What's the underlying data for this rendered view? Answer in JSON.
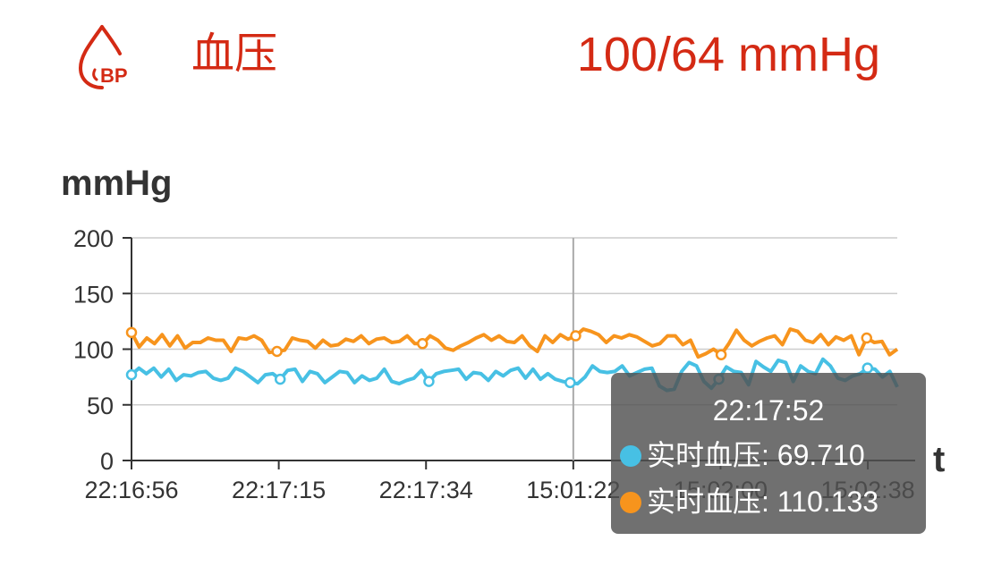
{
  "header": {
    "icon": "blood-drop-bp-icon",
    "icon_text": "BP",
    "title": "血压",
    "reading": "100/64 mmHg",
    "accent_color": "#d42a14"
  },
  "chart_data": {
    "type": "line",
    "ylabel": "mmHg",
    "xlabel": "t",
    "ylim": [
      0,
      200
    ],
    "yticks": [
      0,
      50,
      100,
      150,
      200
    ],
    "xtick_labels": [
      "22:16:56",
      "22:17:15",
      "22:17:34",
      "15:01:22",
      "15:02:00",
      "15:02:38"
    ],
    "grid": true,
    "series": [
      {
        "name": "实时血压",
        "color": "#47c0e4",
        "values": [
          77,
          83,
          78,
          83,
          75,
          82,
          72,
          77,
          76,
          79,
          80,
          74,
          72,
          74,
          83,
          80,
          75,
          70,
          77,
          78,
          73,
          81,
          82,
          71,
          80,
          78,
          70,
          75,
          80,
          79,
          70,
          76,
          72,
          74,
          82,
          71,
          69,
          72,
          74,
          81,
          71,
          78,
          80,
          81,
          82,
          73,
          79,
          78,
          72,
          80,
          76,
          81,
          83,
          74,
          82,
          73,
          78,
          73,
          71,
          70,
          69,
          75,
          85,
          80,
          79,
          80,
          85,
          76,
          79,
          82,
          83,
          67,
          63,
          64,
          80,
          88,
          85,
          71,
          65,
          73,
          84,
          80,
          79,
          68,
          89,
          84,
          80,
          90,
          88,
          71,
          85,
          80,
          78,
          91,
          85,
          74,
          72,
          76,
          78,
          83,
          82,
          75,
          80,
          66
        ]
      },
      {
        "name": "实时血压",
        "color": "#f7941d",
        "values": [
          115,
          102,
          110,
          105,
          113,
          103,
          112,
          101,
          106,
          106,
          110,
          108,
          108,
          98,
          110,
          109,
          112,
          108,
          97,
          98,
          99,
          110,
          108,
          107,
          101,
          108,
          103,
          104,
          109,
          107,
          112,
          105,
          109,
          110,
          106,
          107,
          112,
          105,
          105,
          112,
          108,
          101,
          99,
          103,
          106,
          110,
          113,
          108,
          112,
          107,
          106,
          112,
          103,
          98,
          112,
          106,
          113,
          109,
          112,
          118,
          116,
          113,
          106,
          112,
          110,
          113,
          111,
          107,
          103,
          105,
          112,
          112,
          104,
          108,
          93,
          96,
          100,
          95,
          105,
          117,
          108,
          103,
          107,
          110,
          112,
          104,
          118,
          116,
          108,
          106,
          113,
          104,
          111,
          108,
          112,
          95,
          110,
          106,
          107,
          95,
          100
        ]
      }
    ],
    "tooltip": {
      "time": "22:17:52",
      "items": [
        {
          "label": "实时血压: 69.710",
          "color": "#47c0e4"
        },
        {
          "label": "实时血压: 110.133",
          "color": "#f7941d"
        }
      ]
    }
  }
}
